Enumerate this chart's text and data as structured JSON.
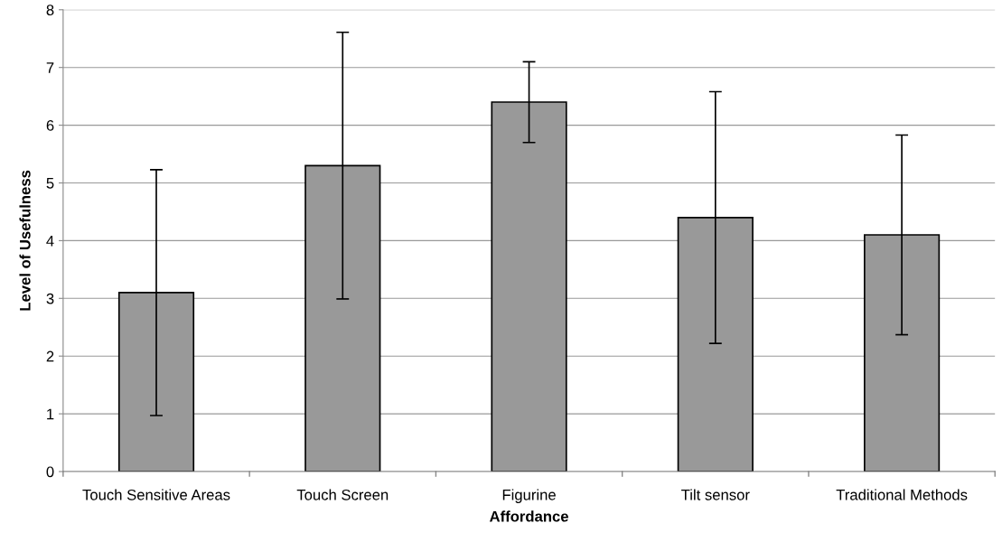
{
  "chart_data": {
    "type": "bar",
    "xlabel": "Affordance",
    "ylabel": "Level of Usefulness",
    "categories": [
      "Touch Sensitive Areas",
      "Touch Screen",
      "Figurine",
      "Tilt sensor",
      "Traditional Methods"
    ],
    "values": [
      3.1,
      5.3,
      6.4,
      4.4,
      4.1
    ],
    "errors": [
      2.13,
      2.31,
      0.7,
      2.18,
      1.73
    ],
    "color": "#999999",
    "ylim": [
      0,
      8
    ],
    "yticks": [
      0,
      1,
      2,
      3,
      4,
      5,
      6,
      7,
      8
    ],
    "grid": "y"
  }
}
